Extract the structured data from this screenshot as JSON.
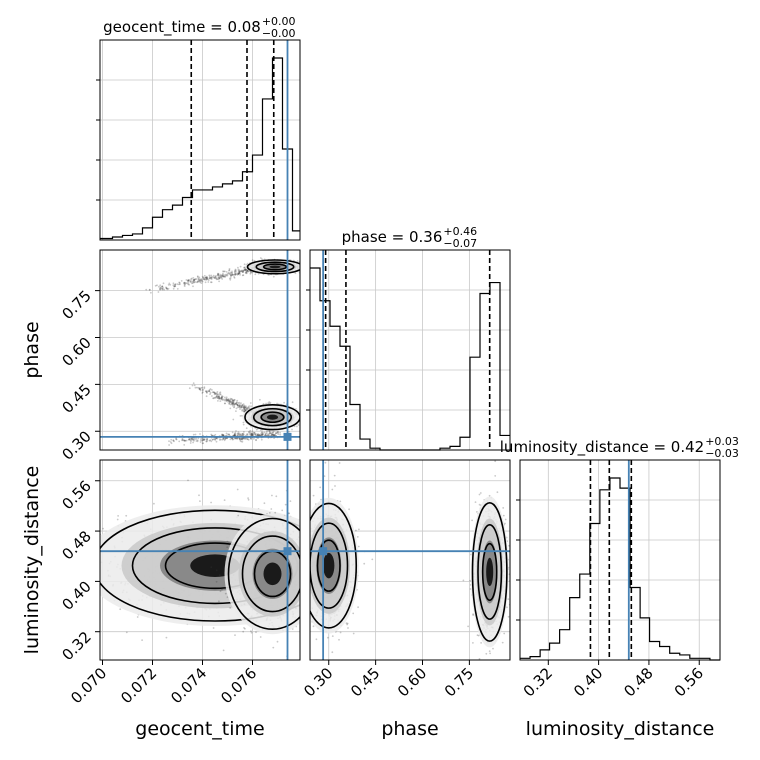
{
  "chart_data": {
    "type": "corner",
    "parameters": [
      "geocent_time",
      "phase",
      "luminosity_distance"
    ],
    "truth": {
      "geocent_time": 0.0774,
      "phase": 0.282,
      "luminosity_distance": 0.448
    },
    "truth_color": "#4682b4",
    "axes": {
      "geocent_time": {
        "range": [
          0.0699,
          0.0779
        ],
        "ticks": [
          0.07,
          0.072,
          0.074,
          0.076
        ],
        "tick_labels": [
          "0.070",
          "0.072",
          "0.074",
          "0.076"
        ]
      },
      "phase": {
        "range": [
          0.24,
          0.88
        ],
        "ticks": [
          0.3,
          0.45,
          0.6,
          0.75
        ],
        "tick_labels": [
          "0.30",
          "0.45",
          "0.60",
          "0.75"
        ]
      },
      "luminosity_distance": {
        "range": [
          0.275,
          0.593
        ],
        "ticks": [
          0.32,
          0.4,
          0.48,
          0.56
        ],
        "tick_labels": [
          "0.32",
          "0.40",
          "0.48",
          "0.56"
        ]
      }
    },
    "diagonal": [
      {
        "parameter": "geocent_time",
        "title_name": "geocent_time",
        "title_value": "0.08",
        "title_plus": "+0.00",
        "title_minus": "−0.00",
        "quantiles": [
          0.07355,
          0.07578,
          0.07685
        ],
        "bin_edges": [
          0.0699,
          0.0704,
          0.0708,
          0.0712,
          0.0716,
          0.072,
          0.0724,
          0.0728,
          0.0732,
          0.0736,
          0.074,
          0.0744,
          0.0748,
          0.0752,
          0.0756,
          0.076,
          0.0764,
          0.0768,
          0.0772,
          0.0776,
          0.0779
        ],
        "counts": [
          1,
          2,
          3,
          4,
          8,
          15,
          20,
          23,
          28,
          33,
          33,
          35,
          37,
          39,
          45,
          56,
          93,
          120,
          60,
          6
        ]
      },
      {
        "parameter": "phase",
        "title_name": "phase",
        "title_value": "0.36",
        "title_plus": "+0.46",
        "title_minus": "−0.07",
        "quantiles": [
          0.29,
          0.355,
          0.815
        ],
        "bin_edges": [
          0.24,
          0.272,
          0.304,
          0.336,
          0.368,
          0.4,
          0.432,
          0.464,
          0.496,
          0.528,
          0.56,
          0.592,
          0.624,
          0.656,
          0.688,
          0.72,
          0.752,
          0.784,
          0.816,
          0.848,
          0.88
        ],
        "counts": [
          100,
          82,
          68,
          57,
          25,
          6,
          1,
          0,
          0,
          0,
          0,
          0,
          0,
          1,
          2,
          7,
          51,
          86,
          92,
          8
        ]
      },
      {
        "parameter": "luminosity_distance",
        "title_name": "luminosity_distance",
        "title_value": "0.42",
        "title_plus": "+0.03",
        "title_minus": "−0.03",
        "quantiles": [
          0.387,
          0.417,
          0.452
        ],
        "bin_edges": [
          0.275,
          0.291,
          0.307,
          0.322,
          0.338,
          0.354,
          0.37,
          0.386,
          0.402,
          0.418,
          0.434,
          0.45,
          0.466,
          0.481,
          0.497,
          0.513,
          0.529,
          0.545,
          0.561,
          0.577,
          0.593
        ],
        "counts": [
          1,
          2,
          6,
          10,
          18,
          37,
          51,
          81,
          101,
          108,
          102,
          43,
          25,
          11,
          8,
          4,
          3,
          1,
          1,
          0
        ]
      }
    ],
    "histogram_y_ticks": 5,
    "grid": true
  }
}
